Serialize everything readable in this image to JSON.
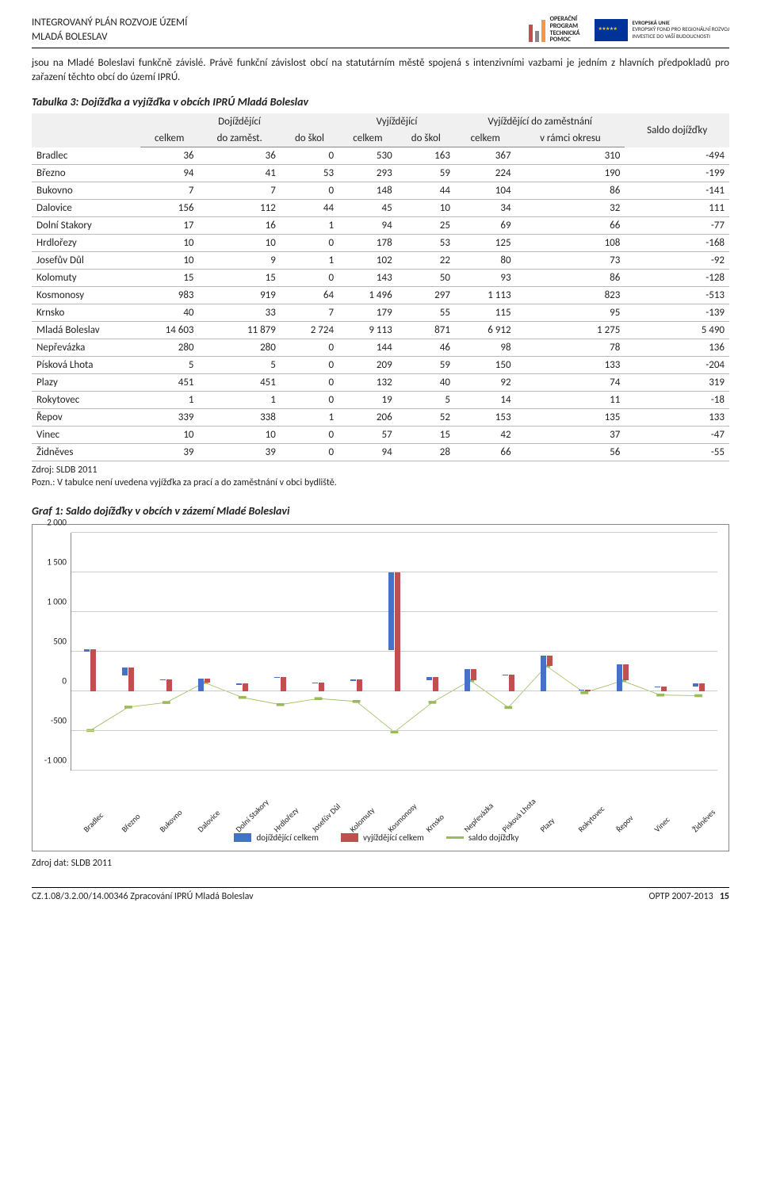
{
  "header": {
    "line1": "INTEGROVANÝ PLÁN ROZVOJE ÚZEMÍ",
    "line2": "MLADÁ BOLESLAV",
    "logo1_lines": [
      "OPERAČNÍ",
      "PROGRAM",
      "TECHNICKÁ",
      "POMOC"
    ],
    "logo2_lines": [
      "EVROPSKÁ UNIE",
      "EVROPSKÝ FOND PRO REGIONÁLNÍ ROZVOJ",
      "INVESTICE DO VAŠÍ BUDOUCNOSTI"
    ],
    "logo1_bar_colors": [
      "#c0504d",
      "#888888",
      "#f79646"
    ]
  },
  "paragraph": "jsou na Mladé Boleslavi funkčně závislé. Právě funkční závislost obcí na statutárním městě spojená s intenzivními vazbami je jedním z hlavních předpokladů pro zařazení těchto obcí do území IPRÚ.",
  "table": {
    "caption": "Tabulka 3: Dojížďka a vyjížďka v obcích IPRÚ Mladá Boleslav",
    "head_top": [
      "",
      "Dojíždějící",
      "Vyjíždějící",
      "Vyjíždějící do zaměstnání",
      "Saldo dojížďky"
    ],
    "head_bot": [
      "",
      "celkem",
      "do zaměst.",
      "do škol",
      "celkem",
      "do škol",
      "celkem",
      "v rámci okresu"
    ],
    "rows": [
      [
        "Bradlec",
        36,
        36,
        0,
        530,
        163,
        367,
        310,
        -494
      ],
      [
        "Březno",
        94,
        41,
        53,
        293,
        59,
        224,
        190,
        -199
      ],
      [
        "Bukovno",
        7,
        7,
        0,
        148,
        44,
        104,
        86,
        -141
      ],
      [
        "Dalovice",
        156,
        112,
        44,
        45,
        10,
        34,
        32,
        111
      ],
      [
        "Dolní Stakory",
        17,
        16,
        1,
        94,
        25,
        69,
        66,
        -77
      ],
      [
        "Hrdlořezy",
        10,
        10,
        0,
        178,
        53,
        125,
        108,
        -168
      ],
      [
        "Josefův Důl",
        10,
        9,
        1,
        102,
        22,
        80,
        73,
        -92
      ],
      [
        "Kolomuty",
        15,
        15,
        0,
        143,
        50,
        93,
        86,
        -128
      ],
      [
        "Kosmonosy",
        983,
        919,
        64,
        "1 496",
        297,
        "1 113",
        823,
        -513
      ],
      [
        "Krnsko",
        40,
        33,
        7,
        179,
        55,
        115,
        95,
        -139
      ],
      [
        "Mladá Boleslav",
        "14 603",
        "11 879",
        "2 724",
        "9 113",
        871,
        "6 912",
        "1 275",
        "5 490"
      ],
      [
        "Nepřevázka",
        280,
        280,
        0,
        144,
        46,
        98,
        78,
        136
      ],
      [
        "Písková Lhota",
        5,
        5,
        0,
        209,
        59,
        150,
        133,
        -204
      ],
      [
        "Plazy",
        451,
        451,
        0,
        132,
        40,
        92,
        74,
        319
      ],
      [
        "Rokytovec",
        1,
        1,
        0,
        19,
        5,
        14,
        11,
        -18
      ],
      [
        "Řepov",
        339,
        338,
        1,
        206,
        52,
        153,
        135,
        133
      ],
      [
        "Vinec",
        10,
        10,
        0,
        57,
        15,
        42,
        37,
        -47
      ],
      [
        "Židněves",
        39,
        39,
        0,
        94,
        28,
        66,
        56,
        -55
      ]
    ],
    "source1": "Zdroj: SLDB 2011",
    "source2": "Pozn.: V tabulce není uvedena vyjížďka za prací a do zaměstnání v obci bydliště."
  },
  "chart": {
    "caption": "Graf 1: Saldo dojížďky v obcích v zázemí Mladé Boleslavi",
    "ymin": -1000,
    "ymax": 2000,
    "ystep": 500,
    "yticks": [
      -1000,
      -500,
      0,
      500,
      1000,
      1500,
      2000
    ],
    "categories": [
      "Bradlec",
      "Březno",
      "Bukovno",
      "Dalovice",
      "Dolní Stakory",
      "Hrdlořezy",
      "Josefův Důl",
      "Kolomuty",
      "Kosmonosy",
      "Krnsko",
      "Nepřevázka",
      "Písková Lhota",
      "Plazy",
      "Rokytovec",
      "Řepov",
      "Vinec",
      "Židněves"
    ],
    "series_blue": [
      36,
      94,
      7,
      156,
      17,
      10,
      10,
      15,
      983,
      40,
      280,
      5,
      451,
      1,
      339,
      10,
      39
    ],
    "series_red": [
      530,
      293,
      148,
      45,
      94,
      178,
      102,
      143,
      1496,
      179,
      144,
      209,
      132,
      19,
      206,
      57,
      94
    ],
    "series_line": [
      -494,
      -199,
      -141,
      111,
      -77,
      -168,
      -92,
      -128,
      -513,
      -139,
      136,
      -204,
      319,
      -18,
      133,
      -47,
      -55
    ],
    "colors": {
      "blue": "#4472c4",
      "red": "#c0504d",
      "line": "#9bbb59",
      "grid": "#cccccc"
    },
    "legend": [
      "dojíždějící celkem",
      "vyjíždějící celkem",
      "saldo dojížďky"
    ],
    "source": "Zdroj dat: SLDB 2011"
  },
  "footer": {
    "left": "CZ.1.08/3.2.00/14.00346 Zpracování IPRÚ Mladá Boleslav",
    "right_label": "OPTP 2007-2013",
    "page": "15"
  }
}
